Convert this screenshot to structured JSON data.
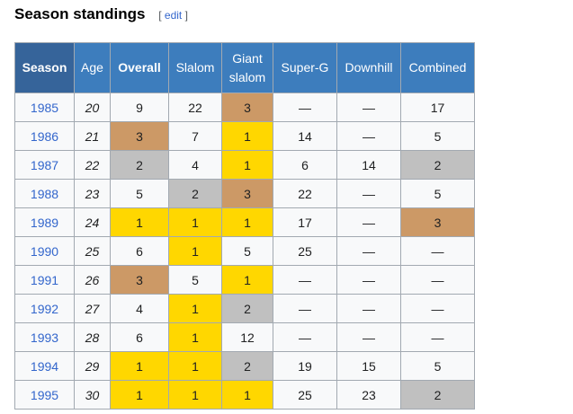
{
  "section": {
    "title": "Season standings",
    "edit_open": "[",
    "edit_label": "edit",
    "edit_close": "]"
  },
  "table": {
    "headers": [
      "Season",
      "Age",
      "Overall",
      "Slalom",
      "Giant slalom",
      "Super-G",
      "Downhill",
      "Combined"
    ],
    "header_lines": {
      "giant1": "Giant",
      "giant2": "slalom"
    },
    "medal_colors": {
      "gold": "#ffd700",
      "silver": "#c0c0c0",
      "bronze": "#cc9966"
    },
    "rows": [
      {
        "season": "1985",
        "age": "20",
        "cells": [
          "9",
          "22",
          "3",
          "—",
          "—",
          "17"
        ],
        "medals": [
          "",
          "",
          "b",
          "",
          "",
          ""
        ]
      },
      {
        "season": "1986",
        "age": "21",
        "cells": [
          "3",
          "7",
          "1",
          "14",
          "—",
          "5"
        ],
        "medals": [
          "b",
          "",
          "g",
          "",
          "",
          ""
        ]
      },
      {
        "season": "1987",
        "age": "22",
        "cells": [
          "2",
          "4",
          "1",
          "6",
          "14",
          "2"
        ],
        "medals": [
          "s",
          "",
          "g",
          "",
          "",
          "s"
        ]
      },
      {
        "season": "1988",
        "age": "23",
        "cells": [
          "5",
          "2",
          "3",
          "22",
          "—",
          "5"
        ],
        "medals": [
          "",
          "s",
          "b",
          "",
          "",
          ""
        ]
      },
      {
        "season": "1989",
        "age": "24",
        "cells": [
          "1",
          "1",
          "1",
          "17",
          "—",
          "3"
        ],
        "medals": [
          "g",
          "g",
          "g",
          "",
          "",
          "b"
        ]
      },
      {
        "season": "1990",
        "age": "25",
        "cells": [
          "6",
          "1",
          "5",
          "25",
          "—",
          "—"
        ],
        "medals": [
          "",
          "g",
          "",
          "",
          "",
          ""
        ]
      },
      {
        "season": "1991",
        "age": "26",
        "cells": [
          "3",
          "5",
          "1",
          "—",
          "—",
          "—"
        ],
        "medals": [
          "b",
          "",
          "g",
          "",
          "",
          ""
        ]
      },
      {
        "season": "1992",
        "age": "27",
        "cells": [
          "4",
          "1",
          "2",
          "—",
          "—",
          "—"
        ],
        "medals": [
          "",
          "g",
          "s",
          "",
          "",
          ""
        ]
      },
      {
        "season": "1993",
        "age": "28",
        "cells": [
          "6",
          "1",
          "12",
          "—",
          "—",
          "—"
        ],
        "medals": [
          "",
          "g",
          "",
          "",
          "",
          ""
        ]
      },
      {
        "season": "1994",
        "age": "29",
        "cells": [
          "1",
          "1",
          "2",
          "19",
          "15",
          "5"
        ],
        "medals": [
          "g",
          "g",
          "s",
          "",
          "",
          ""
        ]
      },
      {
        "season": "1995",
        "age": "30",
        "cells": [
          "1",
          "1",
          "1",
          "25",
          "23",
          "2"
        ],
        "medals": [
          "g",
          "g",
          "g",
          "",
          "",
          "s"
        ]
      }
    ]
  }
}
